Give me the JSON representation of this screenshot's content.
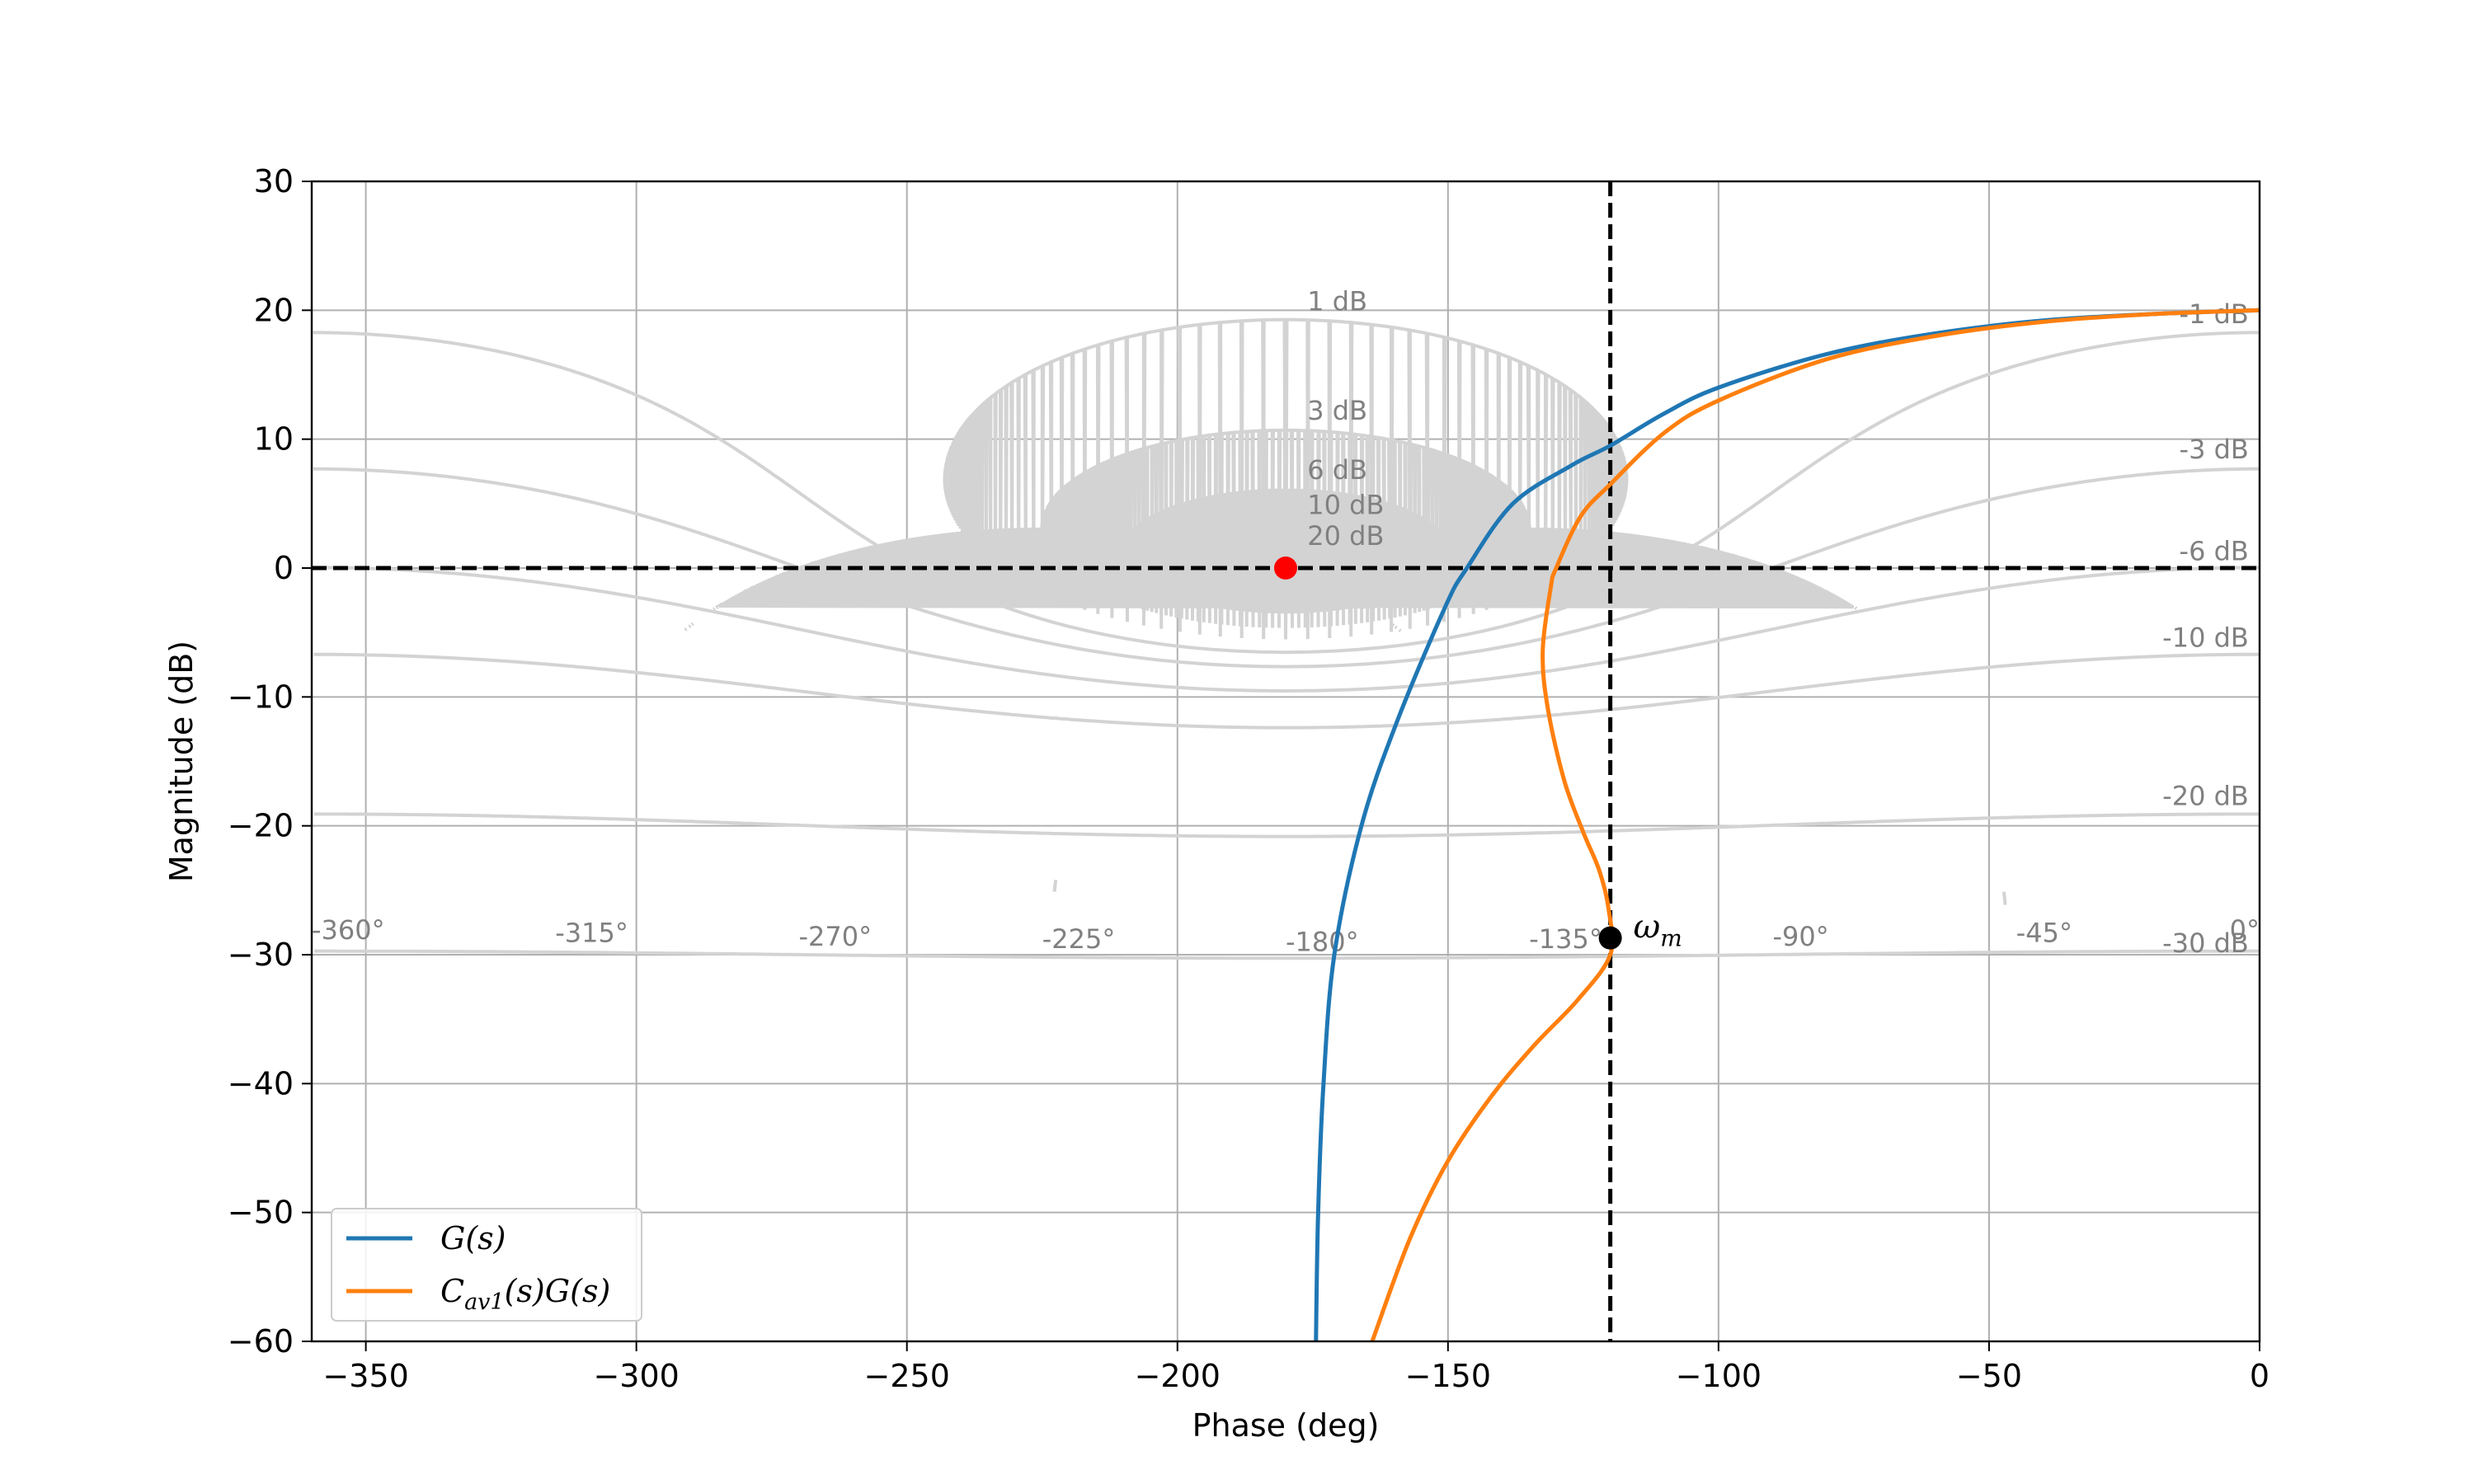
{
  "chart_data": {
    "type": "line",
    "title": "",
    "xlabel": "Phase (deg)",
    "ylabel": "Magnitude (dB)",
    "xlim": [
      -360,
      0
    ],
    "ylim": [
      -60,
      30
    ],
    "grid": true,
    "x_ticks": [
      {
        "value": -350,
        "label": "−350"
      },
      {
        "value": -300,
        "label": "−300"
      },
      {
        "value": -250,
        "label": "−250"
      },
      {
        "value": -200,
        "label": "−200"
      },
      {
        "value": -150,
        "label": "−150"
      },
      {
        "value": -100,
        "label": "−100"
      },
      {
        "value": -50,
        "label": "−50"
      },
      {
        "value": 0,
        "label": "0"
      }
    ],
    "y_ticks": [
      {
        "value": 30,
        "label": "30"
      },
      {
        "value": 20,
        "label": "20"
      },
      {
        "value": 10,
        "label": "10"
      },
      {
        "value": 0,
        "label": "0"
      },
      {
        "value": -10,
        "label": "−10"
      },
      {
        "value": -20,
        "label": "−20"
      },
      {
        "value": -30,
        "label": "−30"
      },
      {
        "value": -40,
        "label": "−40"
      },
      {
        "value": -50,
        "label": "−50"
      },
      {
        "value": -60,
        "label": "−60"
      }
    ],
    "nichols_gain_labels": [
      {
        "label": "1 dB",
        "x": -176,
        "y": 20.0
      },
      {
        "label": "3 dB",
        "x": -176,
        "y": 11.5
      },
      {
        "label": "6 dB",
        "x": -176,
        "y": 6.9
      },
      {
        "label": "10 dB",
        "x": -176,
        "y": 4.2
      },
      {
        "label": "20 dB",
        "x": -176,
        "y": 1.8
      },
      {
        "label": "-1 dB",
        "x": -2,
        "y": 19.0
      },
      {
        "label": "-3 dB",
        "x": -2,
        "y": 8.5
      },
      {
        "label": "-6 dB",
        "x": -2,
        "y": 0.6
      },
      {
        "label": "-10 dB",
        "x": -2,
        "y": -6.1
      },
      {
        "label": "-20 dB",
        "x": -2,
        "y": -18.4
      },
      {
        "label": "-30 dB",
        "x": -2,
        "y": -29.8
      }
    ],
    "nichols_phase_labels": [
      {
        "label": "-360°",
        "x": -360,
        "y": -28.8
      },
      {
        "label": "-315°",
        "x": -315,
        "y": -29.0
      },
      {
        "label": "-270°",
        "x": -270,
        "y": -29.3
      },
      {
        "label": "-225°",
        "x": -225,
        "y": -29.5
      },
      {
        "label": "-180°",
        "x": -180,
        "y": -29.7
      },
      {
        "label": "-135°",
        "x": -135,
        "y": -29.5
      },
      {
        "label": "-90°",
        "x": -90,
        "y": -29.3
      },
      {
        "label": "-45°",
        "x": -45,
        "y": -29.0
      },
      {
        "label": "0°",
        "x": 0,
        "y": -28.8
      }
    ],
    "series": [
      {
        "name": "G(s)",
        "name_main": "G(s)",
        "color": "#1f77b4",
        "points": [
          [
            -174.4,
            -60
          ],
          [
            -174.0,
            -50
          ],
          [
            -173.0,
            -40
          ],
          [
            -171.0,
            -30
          ],
          [
            -166.0,
            -20
          ],
          [
            -159.5,
            -12
          ],
          [
            -150.5,
            -3
          ],
          [
            -146.5,
            0
          ],
          [
            -138.0,
            5
          ],
          [
            -127.0,
            8
          ],
          [
            -120.0,
            9.5
          ],
          [
            -110.0,
            12
          ],
          [
            -100.0,
            14.0
          ],
          [
            -80.0,
            16.6
          ],
          [
            -60.0,
            18.2
          ],
          [
            -40.0,
            19.2
          ],
          [
            -20.0,
            19.7
          ],
          [
            0.0,
            20.0
          ]
        ]
      },
      {
        "name": "C_av1(s)G(s)",
        "name_main": "C",
        "name_sub": "av1",
        "name_rest": "(s)G(s)",
        "color": "#ff7f0e",
        "points": [
          [
            -164.0,
            -60
          ],
          [
            -157.0,
            -52
          ],
          [
            -150.0,
            -46
          ],
          [
            -142.0,
            -41
          ],
          [
            -134.0,
            -37
          ],
          [
            -126.0,
            -33.5
          ],
          [
            -120.0,
            -30.0
          ],
          [
            -120.3,
            -26.5
          ],
          [
            -122.0,
            -23.5
          ],
          [
            -125.0,
            -20.5
          ],
          [
            -128.5,
            -16.5
          ],
          [
            -131.5,
            -11.0
          ],
          [
            -132.5,
            -6.5
          ],
          [
            -131.0,
            -1.5
          ],
          [
            -130.0,
            0
          ],
          [
            -125.5,
            4.0
          ],
          [
            -120.0,
            6.5
          ],
          [
            -110.0,
            10.5
          ],
          [
            -100.0,
            13.0
          ],
          [
            -80.0,
            16.2
          ],
          [
            -60.0,
            18.0
          ],
          [
            -40.0,
            19.1
          ],
          [
            -20.0,
            19.7
          ],
          [
            0.0,
            20.0
          ]
        ]
      }
    ],
    "reference_lines": [
      {
        "orientation": "horizontal",
        "value": 0,
        "style": "dashed",
        "color": "#000000"
      },
      {
        "orientation": "vertical",
        "value": -120,
        "style": "dashed",
        "color": "#000000"
      }
    ],
    "markers": [
      {
        "x": -180,
        "y": 0,
        "color": "#ff0000"
      },
      {
        "x": -120,
        "y": -28.7,
        "color": "#000000",
        "label_main": "ω",
        "label_sub": "m"
      }
    ],
    "legend": {
      "position": "lower-left"
    }
  }
}
